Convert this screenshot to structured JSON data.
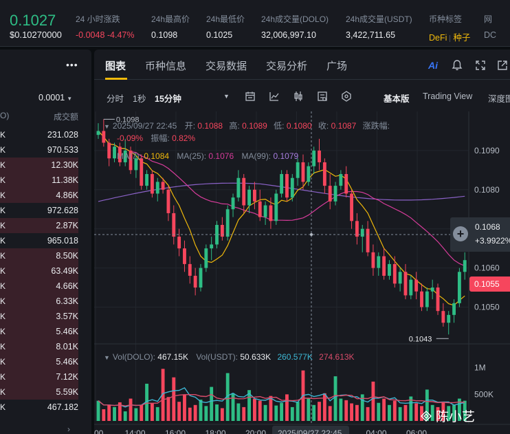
{
  "header": {
    "price": "0.1027",
    "price_usd": "$0.10270000",
    "stats": [
      {
        "label": "24 小时涨跌",
        "value": "-0.0048 -4.47%",
        "color": "#f6465d"
      },
      {
        "label": "24h最高价",
        "value": "0.1098"
      },
      {
        "label": "24h最低价",
        "value": "0.1025"
      },
      {
        "label": "24h成交量(DOLO)",
        "value": "32,006,997.10"
      },
      {
        "label": "24h成交量(USDT)",
        "value": "3,422,711.65"
      }
    ],
    "tag_label": "币种标签",
    "tags": [
      "DeFi",
      "种子"
    ],
    "extra_label": "网",
    "extra_value": "DC"
  },
  "book": {
    "menu": "•••",
    "precision": "0.0001",
    "col_left": "O)",
    "col_right": "成交额",
    "rows": [
      {
        "k": "K",
        "v": "231.028",
        "fill": 0.0
      },
      {
        "k": "K",
        "v": "970.533",
        "fill": 0.0
      },
      {
        "k": "K",
        "v": "12.30K",
        "fill": 1.0
      },
      {
        "k": "K",
        "v": "11.38K",
        "fill": 1.0
      },
      {
        "k": "K",
        "v": "4.86K",
        "fill": 1.0
      },
      {
        "k": "K",
        "v": "972.628",
        "fill": 0.0
      },
      {
        "k": "K",
        "v": "2.87K",
        "fill": 1.0
      },
      {
        "k": "K",
        "v": "965.018",
        "fill": 0.0
      },
      {
        "k": "K",
        "v": "8.50K",
        "fill": 1.0
      },
      {
        "k": "K",
        "v": "63.49K",
        "fill": 1.0
      },
      {
        "k": "K",
        "v": "4.66K",
        "fill": 1.0
      },
      {
        "k": "K",
        "v": "6.33K",
        "fill": 1.0
      },
      {
        "k": "K",
        "v": "3.57K",
        "fill": 1.0
      },
      {
        "k": "K",
        "v": "5.46K",
        "fill": 1.0
      },
      {
        "k": "K",
        "v": "8.01K",
        "fill": 1.0
      },
      {
        "k": "K",
        "v": "5.46K",
        "fill": 1.0
      },
      {
        "k": "K",
        "v": "7.12K",
        "fill": 1.0
      },
      {
        "k": "K",
        "v": "5.59K",
        "fill": 1.0
      },
      {
        "k": "K",
        "v": "467.182",
        "fill": 0.0
      }
    ]
  },
  "tabs": [
    {
      "label": "图表",
      "active": true
    },
    {
      "label": "币种信息"
    },
    {
      "label": "交易数据"
    },
    {
      "label": "交易分析"
    },
    {
      "label": "广场"
    }
  ],
  "tab_icons": [
    "ai-icon",
    "bell-icon",
    "expand-icon",
    "external-link-icon"
  ],
  "toolbar": {
    "intervals": [
      "分时",
      "1秒",
      "15分钟"
    ],
    "selected_interval": "15分钟",
    "modes": [
      "基本版",
      "Trading View",
      "深度图"
    ],
    "selected_mode": "基本版"
  },
  "legend": {
    "date": "2025/09/27 22:45",
    "open_label": "开:",
    "open": "0.1088",
    "high_label": "高:",
    "high": "0.1089",
    "low_label": "低:",
    "low": "0.1080",
    "close_label": "收:",
    "close": "0.1087",
    "change_label": "涨跌幅:",
    "change": "-0.09%",
    "amp_label": "振幅:",
    "amp": "0.82%",
    "ma7_label": "MA(7):",
    "ma7": "0.1084",
    "ma25_label": "MA(25):",
    "ma25": "0.1076",
    "ma99_label": "MA(99):",
    "ma99": "0.1079"
  },
  "vol_legend": {
    "dolo_label": "Vol(DOLO):",
    "dolo": "467.15K",
    "usdt_label": "Vol(USDT):",
    "usdt": "50.633K",
    "ma1": "260.577K",
    "ma2": "274.613K"
  },
  "crosshair": {
    "price": "0.1068",
    "pct": "+3.9922%",
    "date": "2025/09/27 22:45"
  },
  "last_price_tag": "0.1055",
  "annotations": {
    "high": "0.1098",
    "low": "0.1043"
  },
  "colors": {
    "up": "#2ebd85",
    "down": "#f6465d",
    "ma7": "#f0b90b",
    "ma25": "#d63c9a",
    "ma99": "#8b62c8",
    "vol_ma1": "#3db7d4",
    "vol_ma2": "#d94c6a"
  },
  "chart_data": {
    "type": "candlestick",
    "interval": "15m",
    "y_ticks": [
      "0.1090",
      "0.1080",
      "0.1070",
      "0.1060",
      "0.1050"
    ],
    "y_range": [
      0.1042,
      0.11
    ],
    "x_ticks": [
      "00",
      "14:00",
      "16:00",
      "18:00",
      "20:00",
      "2025/09/27 22:45",
      "00:00",
      "04:00",
      "06:00"
    ],
    "vol_ticks": [
      "1M",
      "500K"
    ],
    "candles": [
      [
        0.1094,
        0.1097,
        0.1093,
        0.1095
      ],
      [
        0.1095,
        0.1098,
        0.1091,
        0.1092
      ],
      [
        0.1092,
        0.1093,
        0.1086,
        0.1088
      ],
      [
        0.1088,
        0.1092,
        0.1087,
        0.1091
      ],
      [
        0.1091,
        0.1092,
        0.1086,
        0.1087
      ],
      [
        0.1087,
        0.1093,
        0.1086,
        0.109
      ],
      [
        0.109,
        0.1091,
        0.1084,
        0.1085
      ],
      [
        0.1085,
        0.1089,
        0.1083,
        0.1088
      ],
      [
        0.1088,
        0.1089,
        0.108,
        0.1081
      ],
      [
        0.1081,
        0.1085,
        0.108,
        0.1084
      ],
      [
        0.1084,
        0.1085,
        0.1078,
        0.1079
      ],
      [
        0.1079,
        0.1083,
        0.1077,
        0.1082
      ],
      [
        0.1082,
        0.1083,
        0.1079,
        0.108
      ],
      [
        0.108,
        0.1081,
        0.1072,
        0.1074
      ],
      [
        0.1074,
        0.1076,
        0.1066,
        0.1068
      ],
      [
        0.1068,
        0.107,
        0.1063,
        0.1065
      ],
      [
        0.1065,
        0.1067,
        0.1059,
        0.1061
      ],
      [
        0.1061,
        0.1063,
        0.1056,
        0.1058
      ],
      [
        0.1058,
        0.106,
        0.1053,
        0.1055
      ],
      [
        0.1055,
        0.1061,
        0.1054,
        0.106
      ],
      [
        0.106,
        0.1066,
        0.1059,
        0.1065
      ],
      [
        0.1065,
        0.1068,
        0.1062,
        0.1066
      ],
      [
        0.1066,
        0.1072,
        0.1065,
        0.1071
      ],
      [
        0.1071,
        0.1073,
        0.1067,
        0.1068
      ],
      [
        0.1068,
        0.1076,
        0.1067,
        0.1075
      ],
      [
        0.1075,
        0.1079,
        0.1073,
        0.1078
      ],
      [
        0.1078,
        0.1085,
        0.1077,
        0.1083
      ],
      [
        0.1083,
        0.1084,
        0.1074,
        0.1076
      ],
      [
        0.1076,
        0.1081,
        0.1074,
        0.108
      ],
      [
        0.108,
        0.1082,
        0.1075,
        0.1077
      ],
      [
        0.1077,
        0.108,
        0.1072,
        0.1073
      ],
      [
        0.1073,
        0.1077,
        0.1071,
        0.1076
      ],
      [
        0.1076,
        0.1078,
        0.107,
        0.1072
      ],
      [
        0.1072,
        0.108,
        0.1071,
        0.1079
      ],
      [
        0.1079,
        0.1085,
        0.1078,
        0.1084
      ],
      [
        0.1084,
        0.1085,
        0.1077,
        0.1078
      ],
      [
        0.1078,
        0.1084,
        0.1077,
        0.1083
      ],
      [
        0.1083,
        0.1088,
        0.1081,
        0.1087
      ],
      [
        0.1087,
        0.1089,
        0.108,
        0.1082
      ],
      [
        0.1082,
        0.1087,
        0.1081,
        0.1086
      ],
      [
        0.1086,
        0.1091,
        0.1084,
        0.109
      ],
      [
        0.109,
        0.1093,
        0.1085,
        0.1087
      ],
      [
        0.1087,
        0.1088,
        0.1079,
        0.1081
      ],
      [
        0.1081,
        0.1084,
        0.1075,
        0.1077
      ],
      [
        0.1077,
        0.1082,
        0.1076,
        0.1081
      ],
      [
        0.1081,
        0.1085,
        0.108,
        0.1084
      ],
      [
        0.1084,
        0.1086,
        0.1078,
        0.1079
      ],
      [
        0.1079,
        0.108,
        0.107,
        0.1072
      ],
      [
        0.1072,
        0.1074,
        0.1066,
        0.1068
      ],
      [
        0.1068,
        0.1071,
        0.1064,
        0.107
      ],
      [
        0.107,
        0.1072,
        0.1063,
        0.1064
      ],
      [
        0.1064,
        0.1066,
        0.1058,
        0.106
      ],
      [
        0.106,
        0.1064,
        0.1058,
        0.1063
      ],
      [
        0.1063,
        0.1065,
        0.1057,
        0.1058
      ],
      [
        0.1058,
        0.1062,
        0.1057,
        0.1061
      ],
      [
        0.1061,
        0.1063,
        0.1055,
        0.1056
      ],
      [
        0.1056,
        0.106,
        0.1054,
        0.1059
      ],
      [
        0.1059,
        0.1061,
        0.1052,
        0.1053
      ],
      [
        0.1053,
        0.1058,
        0.1052,
        0.1057
      ],
      [
        0.1057,
        0.1059,
        0.1052,
        0.1054
      ],
      [
        0.1054,
        0.1056,
        0.1049,
        0.105
      ],
      [
        0.105,
        0.1055,
        0.1049,
        0.1054
      ],
      [
        0.1054,
        0.1057,
        0.1052,
        0.1055
      ],
      [
        0.1055,
        0.1056,
        0.1048,
        0.1049
      ],
      [
        0.1049,
        0.1051,
        0.1045,
        0.1046
      ],
      [
        0.1046,
        0.1049,
        0.1043,
        0.1048
      ],
      [
        0.1048,
        0.1052,
        0.1046,
        0.1051
      ],
      [
        0.1051,
        0.106,
        0.105,
        0.1059
      ],
      [
        0.1059,
        0.1064,
        0.1057,
        0.1062
      ]
    ],
    "volumes": [
      380,
      220,
      300,
      260,
      350,
      180,
      420,
      240,
      300,
      700,
      340,
      260,
      980,
      450,
      820,
      360,
      500,
      250,
      300,
      400,
      280,
      640,
      310,
      240,
      900,
      520,
      330,
      260,
      580,
      420,
      380,
      300,
      470,
      290,
      340,
      500,
      260,
      360,
      950,
      430,
      300,
      360,
      520,
      280,
      840,
      420,
      390,
      330,
      300,
      500,
      260,
      740,
      340,
      420,
      300,
      380,
      260,
      300,
      460,
      330,
      280,
      590,
      300,
      260,
      350,
      280,
      300,
      420,
      380
    ],
    "volume_max": 1100
  }
}
